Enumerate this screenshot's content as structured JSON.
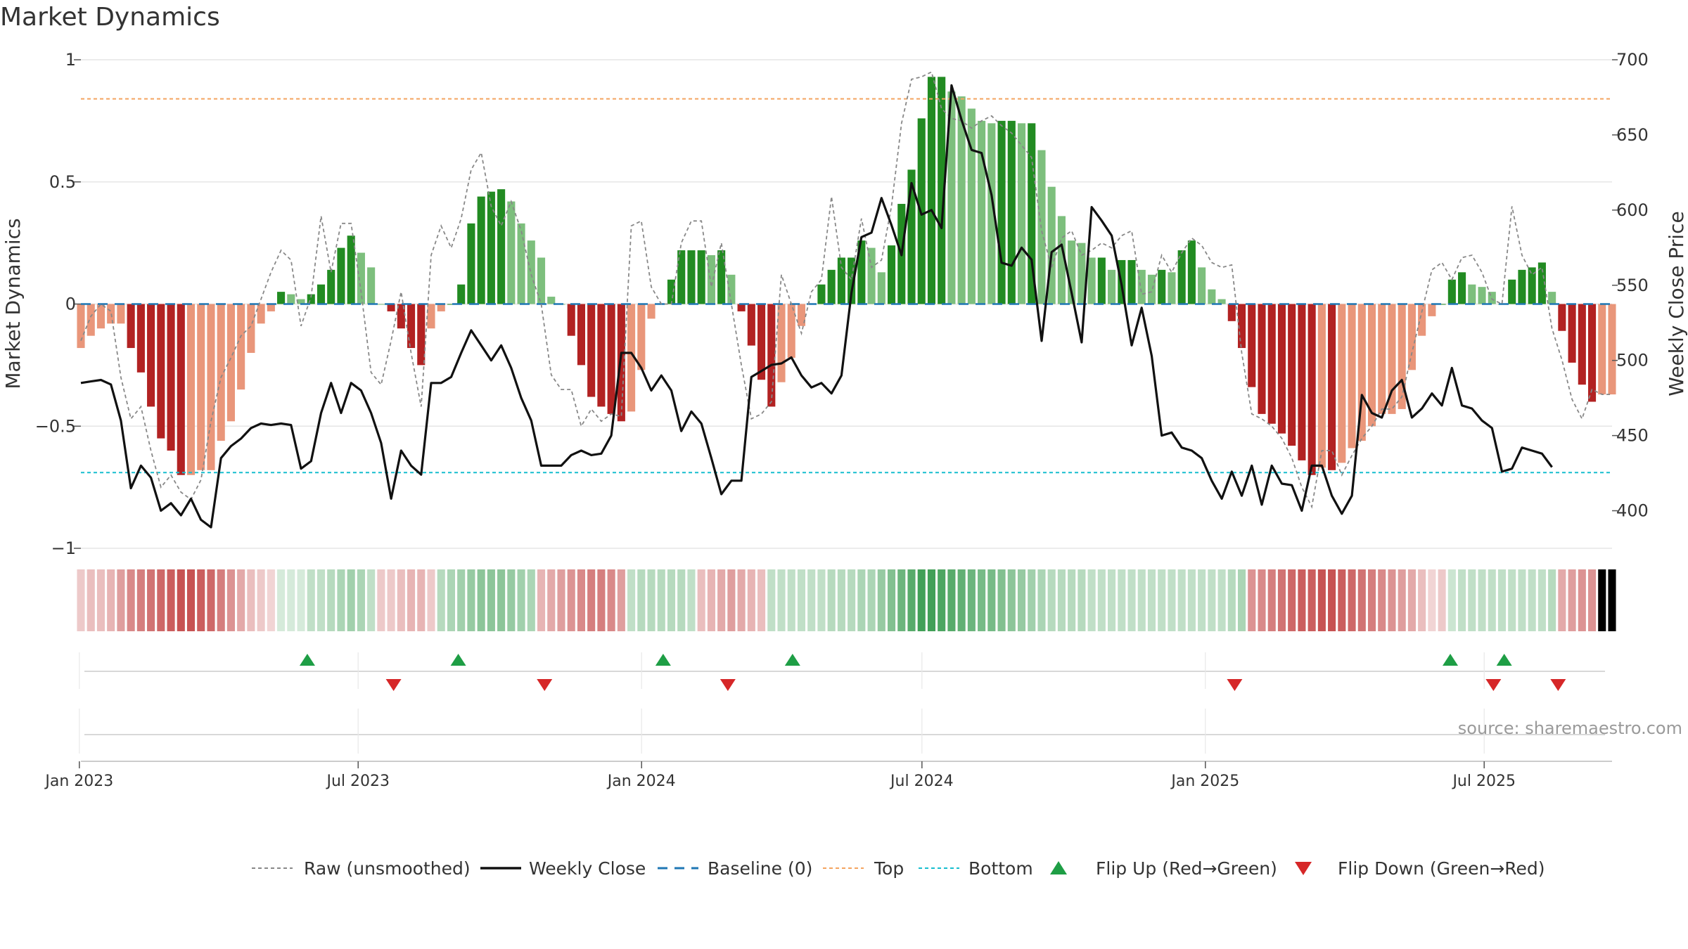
{
  "chart_data": {
    "type": "bar",
    "title": "Market Dynamics",
    "ylabel": "Market Dynamics",
    "y2label": "Weekly Close Price",
    "ylim": [
      -1,
      1
    ],
    "y2lim": [
      375,
      700
    ],
    "yticks": [
      {
        "v": 1,
        "label": "1"
      },
      {
        "v": 0.5,
        "label": "0.5"
      },
      {
        "v": 0,
        "label": "0"
      },
      {
        "v": -0.5,
        "label": "−0.5"
      },
      {
        "v": -1,
        "label": "−1"
      }
    ],
    "y2ticks": [
      {
        "v": 700,
        "label": "700"
      },
      {
        "v": 650,
        "label": "650"
      },
      {
        "v": 600,
        "label": "600"
      },
      {
        "v": 550,
        "label": "550"
      },
      {
        "v": 500,
        "label": "500"
      },
      {
        "v": 450,
        "label": "450"
      },
      {
        "v": 400,
        "label": "400"
      }
    ],
    "x_start": "2023-01-02",
    "x_end": "2025-09-22",
    "xticks": [
      {
        "label": "Jan 2023",
        "date": "2023-01-01"
      },
      {
        "label": "Jul 2023",
        "date": "2023-07-01"
      },
      {
        "label": "Jan 2024",
        "date": "2024-01-01"
      },
      {
        "label": "Jul 2024",
        "date": "2024-07-01"
      },
      {
        "label": "Jan 2025",
        "date": "2025-01-01"
      },
      {
        "label": "Jul 2025",
        "date": "2025-07-01"
      }
    ],
    "top_level": 0.84,
    "bottom_level": -0.69,
    "baseline": 0,
    "source_text": "source: sharemaestro.com",
    "colors": {
      "strong_down": "#b22222",
      "weak_down": "#e9967a",
      "strong_up": "#228b22",
      "weak_up": "#7dbf7d",
      "raw": "#888888",
      "close": "#111111",
      "baseline": "#1f77b4",
      "top": "#f4a460",
      "bottom": "#17becf",
      "flip_up": "#1e9e45",
      "flip_down": "#d62728"
    },
    "series": [
      {
        "name": "Market Dynamics",
        "values": [
          -0.18,
          -0.13,
          -0.1,
          -0.08,
          -0.08,
          -0.18,
          -0.28,
          -0.42,
          -0.55,
          -0.6,
          -0.7,
          -0.7,
          -0.68,
          -0.68,
          -0.56,
          -0.48,
          -0.35,
          -0.2,
          -0.08,
          -0.03,
          0.05,
          0.04,
          0.02,
          0.04,
          0.08,
          0.14,
          0.23,
          0.28,
          0.21,
          0.15,
          0.0,
          -0.03,
          -0.1,
          -0.18,
          -0.25,
          -0.1,
          -0.03,
          0.0,
          0.08,
          0.33,
          0.44,
          0.46,
          0.47,
          0.42,
          0.33,
          0.26,
          0.19,
          0.03,
          0.0,
          -0.13,
          -0.25,
          -0.38,
          -0.42,
          -0.45,
          -0.48,
          -0.44,
          -0.27,
          -0.06,
          0.0,
          0.1,
          0.22,
          0.22,
          0.22,
          0.2,
          0.22,
          0.12,
          -0.03,
          -0.17,
          -0.31,
          -0.42,
          -0.32,
          -0.22,
          -0.09,
          0.0,
          0.08,
          0.14,
          0.19,
          0.19,
          0.26,
          0.23,
          0.13,
          0.24,
          0.41,
          0.55,
          0.76,
          0.93,
          0.93,
          0.87,
          0.85,
          0.8,
          0.75,
          0.74,
          0.75,
          0.75,
          0.74,
          0.74,
          0.63,
          0.48,
          0.36,
          0.26,
          0.25,
          0.19,
          0.19,
          0.14,
          0.18,
          0.18,
          0.14,
          0.12,
          0.14,
          0.13,
          0.22,
          0.26,
          0.15,
          0.06,
          0.02,
          -0.07,
          -0.18,
          -0.34,
          -0.45,
          -0.49,
          -0.53,
          -0.58,
          -0.64,
          -0.7,
          -0.67,
          -0.68,
          -0.65,
          -0.59,
          -0.56,
          -0.5,
          -0.45,
          -0.45,
          -0.43,
          -0.27,
          -0.13,
          -0.05,
          0.0,
          0.1,
          0.13,
          0.08,
          0.07,
          0.05,
          0.0,
          0.1,
          0.14,
          0.15,
          0.17,
          0.05,
          -0.11,
          -0.24,
          -0.33,
          -0.4,
          -0.37,
          -0.37
        ]
      },
      {
        "name": "Raw (unsmoothed)",
        "values": [
          -0.15,
          -0.05,
          0.0,
          -0.03,
          -0.3,
          -0.47,
          -0.42,
          -0.6,
          -0.75,
          -0.7,
          -0.77,
          -0.8,
          -0.72,
          -0.48,
          -0.3,
          -0.22,
          -0.13,
          -0.09,
          0.02,
          0.13,
          0.22,
          0.18,
          -0.09,
          0.03,
          0.36,
          0.13,
          0.33,
          0.33,
          0.05,
          -0.28,
          -0.33,
          -0.15,
          0.05,
          -0.2,
          -0.42,
          0.2,
          0.32,
          0.23,
          0.35,
          0.55,
          0.62,
          0.4,
          0.32,
          0.42,
          0.3,
          0.12,
          0.0,
          -0.29,
          -0.35,
          -0.35,
          -0.5,
          -0.43,
          -0.48,
          -0.45,
          -0.46,
          0.32,
          0.34,
          0.07,
          0.0,
          0.0,
          0.25,
          0.34,
          0.34,
          0.07,
          0.25,
          0.0,
          -0.25,
          -0.47,
          -0.45,
          -0.4,
          0.12,
          0.0,
          -0.12,
          0.05,
          0.1,
          0.44,
          0.15,
          0.1,
          0.35,
          0.15,
          0.18,
          0.4,
          0.74,
          0.92,
          0.93,
          0.95,
          0.8,
          0.76,
          0.75,
          0.72,
          0.75,
          0.77,
          0.73,
          0.7,
          0.65,
          0.6,
          0.3,
          0.15,
          0.27,
          0.3,
          0.2,
          0.22,
          0.25,
          0.23,
          0.28,
          0.3,
          0.04,
          0.05,
          0.2,
          0.13,
          0.21,
          0.27,
          0.24,
          0.17,
          0.15,
          0.16,
          -0.2,
          -0.45,
          -0.47,
          -0.5,
          -0.55,
          -0.63,
          -0.75,
          -0.83,
          -0.6,
          -0.6,
          -0.7,
          -0.62,
          -0.55,
          -0.5,
          -0.43,
          -0.43,
          -0.38,
          -0.2,
          -0.03,
          0.14,
          0.17,
          0.1,
          0.19,
          0.2,
          0.13,
          0.02,
          0.0,
          0.4,
          0.2,
          0.12,
          0.15,
          -0.1,
          -0.23,
          -0.39,
          -0.47,
          -0.35,
          -0.37,
          -0.37
        ]
      },
      {
        "name": "Weekly Close",
        "values": [
          485,
          486,
          487,
          484,
          460,
          415,
          430,
          422,
          400,
          405,
          397,
          408,
          394,
          389,
          435,
          443,
          448,
          455,
          458,
          457,
          458,
          457,
          428,
          433,
          465,
          485,
          465,
          485,
          480,
          465,
          445,
          408,
          440,
          430,
          424,
          485,
          485,
          489,
          505,
          520,
          510,
          500,
          510,
          495,
          475,
          460,
          430,
          430,
          430,
          437,
          440,
          437,
          438,
          450,
          505,
          505,
          495,
          480,
          490,
          480,
          453,
          466,
          458,
          435,
          411,
          420,
          420,
          489,
          493,
          497,
          498,
          502,
          490,
          482,
          485,
          478,
          490,
          545,
          582,
          585,
          608,
          590,
          570,
          618,
          597,
          600,
          588,
          683,
          660,
          640,
          638,
          610,
          565,
          563,
          575,
          567,
          513,
          572,
          577,
          545,
          512,
          602,
          593,
          583,
          550,
          510,
          535,
          503,
          450,
          452,
          442,
          440,
          435,
          420,
          408,
          426,
          410,
          430,
          404,
          430,
          418,
          417,
          400,
          430,
          430,
          410,
          398,
          410,
          477,
          465,
          462,
          480,
          487,
          462,
          468,
          478,
          470,
          495,
          470,
          468,
          460,
          455,
          426,
          428,
          442,
          440,
          438,
          429
        ]
      }
    ],
    "color_strip": [
      "sd",
      "sd",
      "sd",
      "sd",
      "sd",
      "sd",
      "sd",
      "sd",
      "sd",
      "sd",
      "sd",
      "sd",
      "sd",
      "sd",
      "sd",
      "sd",
      "sd",
      "sd",
      "sd",
      "sd",
      "su",
      "su",
      "su",
      "su",
      "su",
      "su",
      "su",
      "su",
      "su",
      "su",
      "sd",
      "sd",
      "sd",
      "sd",
      "sd",
      "sd",
      "su",
      "su",
      "su",
      "su",
      "su",
      "su",
      "su",
      "su",
      "su",
      "su",
      "sd",
      "sd",
      "sd",
      "sd",
      "sd",
      "sd",
      "sd",
      "sd",
      "sd",
      "su",
      "su",
      "su",
      "su",
      "su",
      "su",
      "su",
      "sd",
      "sd",
      "sd",
      "sd",
      "sd",
      "sd",
      "sd",
      "su",
      "su",
      "su",
      "su",
      "su",
      "su",
      "su",
      "su",
      "su",
      "su",
      "su",
      "su",
      "su",
      "su",
      "su",
      "su",
      "su",
      "su",
      "su",
      "su",
      "su",
      "su",
      "su",
      "su",
      "su",
      "su",
      "su",
      "su",
      "su",
      "su",
      "su",
      "su",
      "su",
      "su",
      "su",
      "su",
      "su",
      "su",
      "su",
      "su",
      "su",
      "su",
      "su",
      "su",
      "su",
      "su",
      "su",
      "su",
      "sd",
      "sd",
      "sd",
      "sd",
      "sd",
      "sd",
      "sd",
      "sd",
      "sd",
      "sd",
      "sd",
      "sd",
      "sd",
      "sd",
      "sd",
      "sd",
      "sd",
      "sd",
      "sd",
      "sd",
      "su",
      "su",
      "su",
      "su",
      "su",
      "su",
      "su",
      "su",
      "su",
      "su",
      "su",
      "sd",
      "sd",
      "sd",
      "sd",
      "sd",
      "sd"
    ],
    "strip_intensity": [
      0.25,
      0.3,
      0.3,
      0.35,
      0.45,
      0.55,
      0.6,
      0.65,
      0.7,
      0.75,
      0.8,
      0.8,
      0.75,
      0.7,
      0.6,
      0.5,
      0.4,
      0.3,
      0.25,
      0.2,
      0.2,
      0.2,
      0.2,
      0.3,
      0.3,
      0.35,
      0.4,
      0.45,
      0.4,
      0.3,
      0.25,
      0.25,
      0.3,
      0.35,
      0.35,
      0.25,
      0.35,
      0.4,
      0.45,
      0.5,
      0.55,
      0.55,
      0.55,
      0.5,
      0.45,
      0.4,
      0.35,
      0.4,
      0.45,
      0.5,
      0.55,
      0.6,
      0.6,
      0.55,
      0.45,
      0.3,
      0.35,
      0.35,
      0.35,
      0.35,
      0.35,
      0.3,
      0.3,
      0.35,
      0.4,
      0.45,
      0.4,
      0.35,
      0.3,
      0.3,
      0.3,
      0.3,
      0.3,
      0.3,
      0.3,
      0.35,
      0.35,
      0.35,
      0.4,
      0.4,
      0.5,
      0.6,
      0.7,
      0.8,
      0.9,
      0.9,
      0.85,
      0.8,
      0.75,
      0.7,
      0.65,
      0.65,
      0.6,
      0.55,
      0.5,
      0.45,
      0.4,
      0.35,
      0.35,
      0.35,
      0.35,
      0.3,
      0.3,
      0.3,
      0.3,
      0.3,
      0.3,
      0.3,
      0.3,
      0.3,
      0.3,
      0.3,
      0.3,
      0.3,
      0.3,
      0.35,
      0.4,
      0.5,
      0.55,
      0.6,
      0.65,
      0.7,
      0.75,
      0.75,
      0.8,
      0.8,
      0.75,
      0.7,
      0.65,
      0.6,
      0.55,
      0.5,
      0.45,
      0.4,
      0.3,
      0.2,
      0.25,
      0.25,
      0.3,
      0.3,
      0.3,
      0.3,
      0.3,
      0.3,
      0.3,
      0.3,
      0.3,
      0.35,
      0.4,
      0.45,
      0.5,
      0.5
    ],
    "flips_up": [
      "2023-05-29",
      "2023-09-04",
      "2024-01-15",
      "2024-04-08",
      "2025-06-09",
      "2025-07-14"
    ],
    "flips_down": [
      "2023-07-24",
      "2023-10-30",
      "2024-02-26",
      "2025-01-20",
      "2025-07-07",
      "2025-08-18"
    ],
    "legend_position": "bottom",
    "legend": [
      {
        "key": "raw",
        "label": "Raw (unsmoothed)"
      },
      {
        "key": "close",
        "label": "Weekly Close"
      },
      {
        "key": "baseline",
        "label": "Baseline (0)"
      },
      {
        "key": "top",
        "label": "Top"
      },
      {
        "key": "bottom",
        "label": "Bottom"
      },
      {
        "key": "flip_up",
        "label": "Flip Up (Red→Green)"
      },
      {
        "key": "flip_down",
        "label": "Flip Down (Green→Red)"
      }
    ]
  }
}
